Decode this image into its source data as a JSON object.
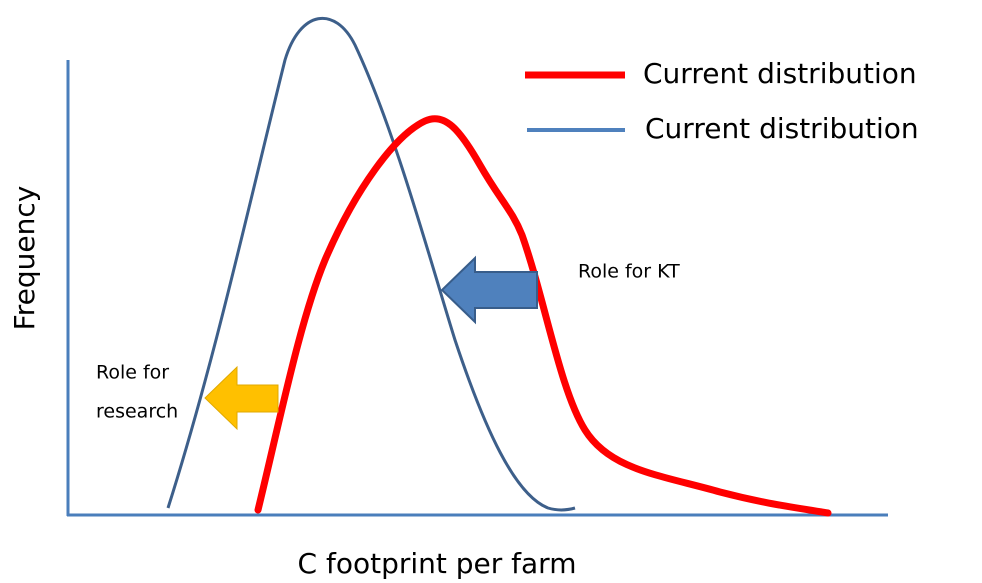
{
  "legend": {
    "items": [
      {
        "label": "Current distribution"
      },
      {
        "label": "Current distribution"
      }
    ]
  },
  "axes": {
    "y_label": "Frequency",
    "x_label": "C footprint per farm"
  },
  "annotations": [
    {
      "text": "Role for KT"
    },
    {
      "lines": [
        "Role for",
        "research"
      ]
    }
  ]
}
